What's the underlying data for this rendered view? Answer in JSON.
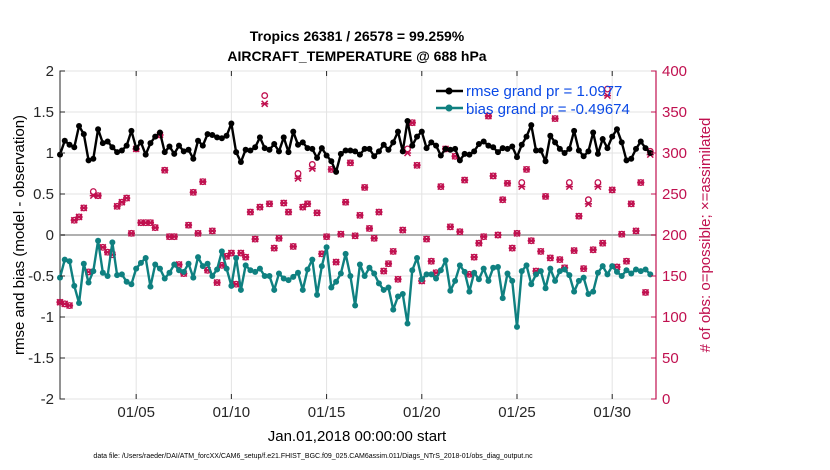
{
  "chart_data": {
    "type": "line",
    "title_line1": "Tropics 26381 / 26578 = 99.259%",
    "title_line2": "AIRCRAFT_TEMPERATURE @ 688 hPa",
    "xlabel": "Jan.01,2018 00:00:00 start",
    "ylabel": "rmse and bias (model - observation)",
    "ylabel_right": "# of obs: o=possible; ×=assimilated",
    "xlim": [
      1,
      32.3
    ],
    "ylim": [
      -2,
      2
    ],
    "ylim_right": [
      0,
      400
    ],
    "x_ticks": [
      5,
      10,
      15,
      20,
      25,
      30
    ],
    "x_tick_labels": [
      "01/05",
      "01/10",
      "01/15",
      "01/20",
      "01/25",
      "01/30"
    ],
    "y_ticks": [
      -2,
      -1.5,
      -1,
      -0.5,
      0,
      0.5,
      1,
      1.5,
      2
    ],
    "y_tick_labels": [
      "-2",
      "-1.5",
      "-1",
      "-0.5",
      "0",
      "0.5",
      "1",
      "1.5",
      "2"
    ],
    "y_right_ticks": [
      0,
      50,
      100,
      150,
      200,
      250,
      300,
      350,
      400
    ],
    "y_right_tick_labels": [
      "0",
      "50",
      "100",
      "150",
      "200",
      "250",
      "300",
      "350",
      "400"
    ],
    "grid": true,
    "zero_line": 0,
    "legend_position": "top-right",
    "colors": {
      "rmse": "#000000",
      "bias": "#0f8080",
      "obs": "#c0104f",
      "zero_line": "#b0b0b0",
      "legend_text": "#0a49e6"
    },
    "series": [
      {
        "name": "rmse grand pr = 1.0977",
        "axis": "left",
        "color": "#000000",
        "x": [
          1.0,
          1.25,
          1.5,
          1.75,
          2.0,
          2.25,
          2.5,
          2.75,
          3.0,
          3.25,
          3.5,
          3.75,
          4.0,
          4.25,
          4.5,
          4.75,
          5.0,
          5.25,
          5.5,
          5.75,
          6.0,
          6.25,
          6.5,
          6.75,
          7.0,
          7.25,
          7.5,
          7.75,
          8.0,
          8.25,
          8.5,
          8.75,
          9.0,
          9.25,
          9.5,
          9.75,
          10.0,
          10.25,
          10.5,
          10.75,
          11.0,
          11.25,
          11.5,
          11.75,
          12.0,
          12.25,
          12.5,
          12.75,
          13.0,
          13.25,
          13.5,
          13.75,
          14.0,
          14.25,
          14.5,
          14.75,
          15.0,
          15.25,
          15.5,
          15.75,
          16.0,
          16.25,
          16.5,
          16.75,
          17.0,
          17.25,
          17.5,
          17.75,
          18.0,
          18.25,
          18.5,
          18.75,
          19.0,
          19.25,
          19.5,
          19.75,
          20.0,
          20.25,
          20.5,
          20.75,
          21.0,
          21.25,
          21.5,
          21.75,
          22.0,
          22.25,
          22.5,
          22.75,
          23.0,
          23.25,
          23.5,
          23.75,
          24.0,
          24.25,
          24.5,
          24.75,
          25.0,
          25.25,
          25.5,
          25.75,
          26.0,
          26.25,
          26.5,
          26.75,
          27.0,
          27.25,
          27.5,
          27.75,
          28.0,
          28.25,
          28.5,
          28.75,
          29.0,
          29.25,
          29.5,
          29.75,
          30.0,
          30.25,
          30.5,
          30.75,
          31.0,
          31.25,
          31.5,
          31.75,
          32.0
        ],
        "values": [
          0.98,
          1.15,
          1.1,
          1.07,
          1.33,
          1.23,
          0.91,
          0.93,
          1.29,
          1.12,
          1.14,
          1.07,
          1.01,
          1.03,
          1.09,
          1.27,
          1.06,
          1.13,
          0.98,
          1.12,
          1.2,
          1.25,
          1.01,
          1.08,
          0.99,
          1.09,
          1.02,
          1.04,
          0.93,
          1.15,
          1.09,
          1.23,
          1.22,
          1.19,
          1.18,
          1.21,
          1.36,
          1.01,
          0.89,
          1.04,
          1.03,
          1.07,
          1.19,
          1.06,
          1.04,
          1.11,
          1.02,
          1.19,
          1.01,
          1.26,
          1.1,
          1.13,
          1.06,
          1.05,
          0.94,
          1.06,
          0.97,
          0.9,
          0.77,
          0.99,
          1.03,
          1.03,
          1.02,
          0.98,
          1.05,
          1.05,
          0.96,
          1.02,
          1.1,
          1.04,
          1.13,
          1.26,
          1.02,
          1.39,
          1.09,
          1.2,
          1.26,
          1.06,
          1.13,
          1.09,
          0.97,
          1.05,
          1.04,
          1.05,
          0.91,
          0.99,
          0.98,
          1.02,
          1.11,
          1.14,
          1.09,
          1.07,
          1.01,
          1.06,
          1.05,
          1.08,
          0.95,
          1.1,
          1.2,
          1.34,
          1.03,
          1.03,
          0.9,
          1.21,
          1.13,
          1.05,
          1.0,
          1.05,
          1.27,
          1.03,
          0.96,
          1.02,
          1.25,
          0.99,
          1.17,
          1.06,
          1.2,
          1.29,
          1.13,
          0.91,
          0.93,
          1.05,
          1.14,
          1.06,
          1.0
        ]
      },
      {
        "name": "bias grand pr = -0.49674",
        "axis": "left",
        "color": "#0f8080",
        "x": [
          1.0,
          1.25,
          1.5,
          1.75,
          2.0,
          2.25,
          2.5,
          2.75,
          3.0,
          3.25,
          3.5,
          3.75,
          4.0,
          4.25,
          4.5,
          4.75,
          5.0,
          5.25,
          5.5,
          5.75,
          6.0,
          6.25,
          6.5,
          6.75,
          7.0,
          7.25,
          7.5,
          7.75,
          8.0,
          8.25,
          8.5,
          8.75,
          9.0,
          9.25,
          9.5,
          9.75,
          10.0,
          10.25,
          10.5,
          10.75,
          11.0,
          11.25,
          11.5,
          11.75,
          12.0,
          12.25,
          12.5,
          12.75,
          13.0,
          13.25,
          13.5,
          13.75,
          14.0,
          14.25,
          14.5,
          14.75,
          15.0,
          15.25,
          15.5,
          15.75,
          16.0,
          16.25,
          16.5,
          16.75,
          17.0,
          17.25,
          17.5,
          17.75,
          18.0,
          18.25,
          18.5,
          18.75,
          19.0,
          19.25,
          19.5,
          19.75,
          20.0,
          20.25,
          20.5,
          20.75,
          21.0,
          21.25,
          21.5,
          21.75,
          22.0,
          22.25,
          22.5,
          22.75,
          23.0,
          23.25,
          23.5,
          23.75,
          24.0,
          24.25,
          24.5,
          24.75,
          25.0,
          25.25,
          25.5,
          25.75,
          26.0,
          26.25,
          26.5,
          26.75,
          27.0,
          27.25,
          27.5,
          27.75,
          28.0,
          28.25,
          28.5,
          28.75,
          29.0,
          29.25,
          29.5,
          29.75,
          30.0,
          30.25,
          30.5,
          30.75,
          31.0,
          31.25,
          31.5,
          31.75,
          32.0
        ],
        "values": [
          -0.52,
          -0.3,
          -0.32,
          -0.62,
          -0.83,
          -0.35,
          -0.58,
          -0.44,
          -0.07,
          -0.46,
          -0.5,
          -0.09,
          -0.49,
          -0.48,
          -0.57,
          -0.6,
          -0.41,
          -0.34,
          -0.28,
          -0.63,
          -0.36,
          -0.41,
          -0.53,
          -0.46,
          -0.36,
          -0.43,
          -0.45,
          -0.35,
          -0.52,
          -0.27,
          -0.38,
          -0.35,
          -0.5,
          -0.42,
          -0.2,
          -0.41,
          -0.62,
          -0.28,
          -0.67,
          -0.37,
          -0.43,
          -0.45,
          -0.41,
          -0.5,
          -0.5,
          -0.67,
          -0.47,
          -0.53,
          -0.55,
          -0.51,
          -0.46,
          -0.67,
          -0.42,
          -0.3,
          -0.73,
          -0.38,
          -0.15,
          -0.64,
          -0.57,
          -0.47,
          -0.23,
          -0.5,
          -0.86,
          -0.36,
          -0.5,
          -0.4,
          -0.47,
          -0.59,
          -0.67,
          -0.64,
          -0.91,
          -0.75,
          -0.72,
          -1.08,
          -0.43,
          -0.28,
          -0.54,
          -0.48,
          -0.48,
          -0.53,
          -0.43,
          -0.31,
          -0.68,
          -0.56,
          -0.37,
          -0.45,
          -0.69,
          -0.46,
          -0.54,
          -0.41,
          -0.56,
          -0.4,
          -0.39,
          -0.77,
          -0.47,
          -0.56,
          -1.12,
          -0.44,
          -0.37,
          -0.6,
          -0.48,
          -0.44,
          -0.65,
          -0.41,
          -0.56,
          -0.44,
          -0.42,
          -0.49,
          -0.69,
          -0.56,
          -0.52,
          -0.72,
          -0.69,
          -0.46,
          -0.38,
          -0.48,
          -0.38,
          -0.45,
          -0.5,
          -0.43,
          -0.47,
          -0.42,
          -0.44,
          -0.42,
          -0.48
        ]
      }
    ],
    "obs_count_note": "o=possible; x=assimilated (right axis, counts)",
    "obs_possible": {
      "x": [
        1.0,
        1.25,
        1.5,
        1.75,
        2.0,
        2.25,
        2.5,
        2.75,
        3.0,
        3.25,
        3.5,
        3.75,
        4.0,
        4.25,
        4.5,
        4.75,
        5.0,
        5.25,
        5.5,
        5.75,
        6.0,
        6.25,
        6.5,
        6.75,
        7.0,
        7.25,
        7.5,
        7.75,
        8.0,
        8.25,
        8.5,
        8.75,
        9.0,
        9.25,
        9.5,
        9.75,
        10.0,
        10.25,
        10.5,
        10.75,
        11.0,
        11.25,
        11.5,
        11.75,
        12.0,
        12.25,
        12.5,
        12.75,
        13.0,
        13.25,
        13.5,
        13.75,
        14.0,
        14.25,
        14.5,
        14.75,
        15.0,
        15.25,
        15.5,
        15.75,
        16.0,
        16.25,
        16.5,
        16.75,
        17.0,
        17.25,
        17.5,
        17.75,
        18.0,
        18.25,
        18.5,
        18.75,
        19.0,
        19.25,
        19.5,
        19.75,
        20.0,
        20.25,
        20.5,
        20.75,
        21.0,
        21.25,
        21.5,
        21.75,
        22.0,
        22.25,
        22.5,
        22.75,
        23.0,
        23.25,
        23.5,
        23.75,
        24.0,
        24.25,
        24.5,
        24.75,
        25.0,
        25.25,
        25.5,
        25.75,
        26.0,
        26.25,
        26.5,
        26.75,
        27.0,
        27.25,
        27.5,
        27.75,
        28.0,
        28.25,
        28.5,
        28.75,
        29.0,
        29.25,
        29.5,
        29.75,
        30.0,
        30.25,
        30.5,
        30.75,
        31.0,
        31.25,
        31.5,
        31.75,
        32.0
      ],
      "values": [
        118,
        116,
        114,
        218,
        222,
        233,
        155,
        253,
        248,
        185,
        179,
        176,
        235,
        240,
        245,
        202,
        305,
        215,
        215,
        215,
        209,
        322,
        279,
        198,
        198,
        164,
        153,
        212,
        252,
        202,
        265,
        157,
        205,
        142,
        163,
        174,
        178,
        140,
        178,
        173,
        228,
        195,
        234,
        370,
        238,
        184,
        196,
        239,
        228,
        186,
        275,
        234,
        238,
        286,
        227,
        177,
        198,
        280,
        167,
        201,
        240,
        288,
        199,
        224,
        258,
        208,
        196,
        228,
        156,
        165,
        180,
        146,
        206,
        305,
        337,
        285,
        144,
        195,
        168,
        154,
        259,
        305,
        210,
        296,
        204,
        267,
        152,
        173,
        190,
        198,
        345,
        272,
        200,
        243,
        263,
        184,
        202,
        264,
        280,
        193,
        156,
        180,
        247,
        172,
        342,
        170,
        160,
        264,
        181,
        223,
        159,
        243,
        182,
        264,
        190,
        378,
        255,
        161,
        201,
        168,
        238,
        205,
        264,
        130,
        302
      ]
    },
    "obs_assimilated": {
      "x": [
        1.0,
        1.25,
        1.5,
        1.75,
        2.0,
        2.25,
        2.5,
        2.75,
        3.0,
        3.25,
        3.5,
        3.75,
        4.0,
        4.25,
        4.5,
        4.75,
        5.0,
        5.25,
        5.5,
        5.75,
        6.0,
        6.25,
        6.5,
        6.75,
        7.0,
        7.25,
        7.5,
        7.75,
        8.0,
        8.25,
        8.5,
        8.75,
        9.0,
        9.25,
        9.5,
        9.75,
        10.0,
        10.25,
        10.5,
        10.75,
        11.0,
        11.25,
        11.5,
        11.75,
        12.0,
        12.25,
        12.5,
        12.75,
        13.0,
        13.25,
        13.5,
        13.75,
        14.0,
        14.25,
        14.5,
        14.75,
        15.0,
        15.25,
        15.5,
        15.75,
        16.0,
        16.25,
        16.5,
        16.75,
        17.0,
        17.25,
        17.5,
        17.75,
        18.0,
        18.25,
        18.5,
        18.75,
        19.0,
        19.25,
        19.5,
        19.75,
        20.0,
        20.25,
        20.5,
        20.75,
        21.0,
        21.25,
        21.5,
        21.75,
        22.0,
        22.25,
        22.5,
        22.75,
        23.0,
        23.25,
        23.5,
        23.75,
        24.0,
        24.25,
        24.5,
        24.75,
        25.0,
        25.25,
        25.5,
        25.75,
        26.0,
        26.25,
        26.5,
        26.75,
        27.0,
        27.25,
        27.5,
        27.75,
        28.0,
        28.25,
        28.5,
        28.75,
        29.0,
        29.25,
        29.5,
        29.75,
        30.0,
        30.25,
        30.5,
        30.75,
        31.0,
        31.25,
        31.5,
        31.75,
        32.0
      ],
      "values": [
        118,
        116,
        114,
        218,
        222,
        233,
        155,
        248,
        248,
        185,
        179,
        176,
        235,
        240,
        245,
        202,
        305,
        215,
        215,
        215,
        209,
        322,
        279,
        198,
        198,
        164,
        153,
        212,
        252,
        202,
        265,
        157,
        205,
        142,
        163,
        174,
        178,
        140,
        178,
        173,
        228,
        195,
        234,
        360,
        238,
        184,
        196,
        239,
        228,
        186,
        269,
        234,
        238,
        281,
        227,
        177,
        198,
        280,
        167,
        201,
        240,
        288,
        199,
        224,
        258,
        208,
        196,
        228,
        156,
        165,
        180,
        146,
        206,
        300,
        337,
        285,
        144,
        195,
        168,
        154,
        259,
        305,
        210,
        296,
        204,
        267,
        152,
        173,
        190,
        198,
        345,
        272,
        200,
        243,
        263,
        184,
        202,
        259,
        280,
        193,
        156,
        180,
        247,
        172,
        342,
        170,
        160,
        259,
        181,
        223,
        159,
        238,
        182,
        259,
        190,
        370,
        255,
        161,
        201,
        168,
        238,
        205,
        264,
        130,
        298
      ]
    },
    "footer": "data file: /Users/raeder/DAI/ATM_forcXX/CAM6_setup/f.e21.FHIST_BGC.f09_025.CAM6assim.011/Diags_NTrS_2018-01/obs_diag_output.nc"
  }
}
